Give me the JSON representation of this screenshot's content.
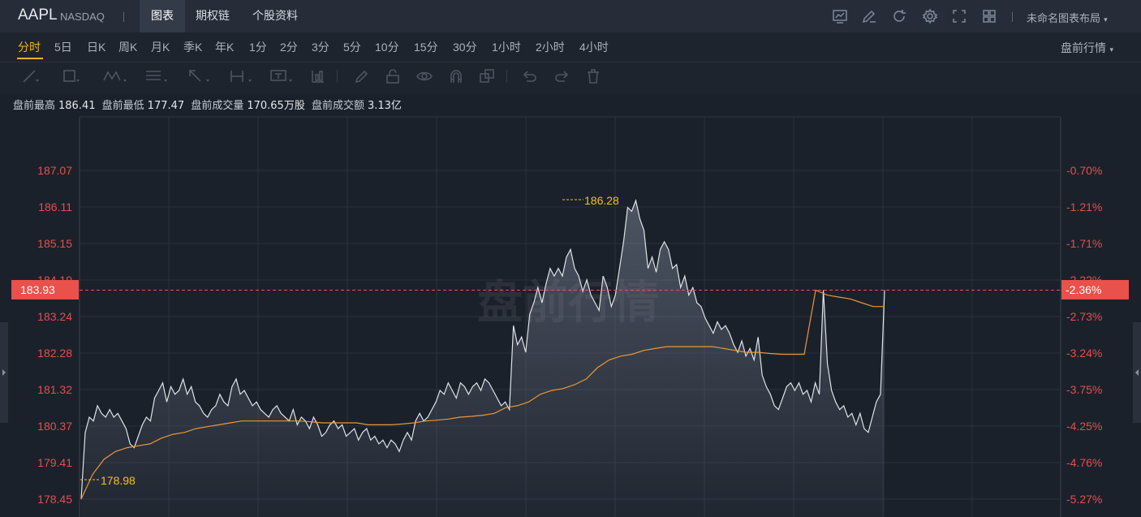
{
  "header": {
    "symbol": "AAPL",
    "exchange": "NASDAQ",
    "tabs": [
      {
        "label": "图表",
        "active": true
      },
      {
        "label": "期权链",
        "active": false
      },
      {
        "label": "个股资料",
        "active": false
      }
    ],
    "tool_icons": [
      "chart-window-icon",
      "edit-icon",
      "refresh-icon",
      "settings-icon",
      "fullscreen-icon",
      "grid-layout-icon"
    ],
    "layout_label": "未命名图表布局"
  },
  "periods": {
    "items": [
      "分时",
      "5日",
      "日K",
      "周K",
      "月K",
      "季K",
      "年K",
      "1分",
      "2分",
      "3分",
      "5分",
      "10分",
      "15分",
      "30分",
      "1小时",
      "2小时",
      "4小时"
    ],
    "active": "分时",
    "right_select": "盘前行情"
  },
  "drawing_tools": [
    "line-tool-icon",
    "rectangle-tool-icon",
    "pattern-tool-icon",
    "fib-tool-icon",
    "arrow-tool-icon",
    "measure-tool-icon",
    "text-tool-icon",
    "indicator-icon",
    "pencil-icon",
    "lock-icon",
    "eye-icon",
    "magnet-icon",
    "copy-icon",
    "undo-icon",
    "redo-icon",
    "delete-icon"
  ],
  "stats": [
    {
      "label": "盘前最高",
      "value": "186.41"
    },
    {
      "label": "盘前最低",
      "value": "177.47"
    },
    {
      "label": "盘前成交量",
      "value": "170.65万股"
    },
    {
      "label": "盘前成交额",
      "value": "3.13亿"
    }
  ],
  "chart_data": {
    "type": "line",
    "watermark": "盘前行情",
    "y_ticks_price": [
      "187.07",
      "186.11",
      "185.15",
      "184.19",
      "183.24",
      "182.28",
      "181.32",
      "180.37",
      "179.41",
      "178.45"
    ],
    "y_ticks_percent": [
      "-0.70%",
      "-1.21%",
      "-1.71%",
      "-2.22%",
      "-2.73%",
      "-3.24%",
      "-3.75%",
      "-4.25%",
      "-4.76%",
      "-5.27%"
    ],
    "ylim": [
      178.45,
      187.07
    ],
    "current_price": "183.93",
    "current_percent": "-2.36%",
    "high_label": "186.28",
    "low_label": "178.98",
    "colors": {
      "price_line": "#dfe3e9",
      "avg_line": "#e8973a",
      "axis_text": "#e2504c",
      "current_bg": "#e9514b",
      "label": "#f0c419"
    },
    "series": [
      {
        "values": [
          178.45,
          180.2,
          180.6,
          180.5,
          180.9,
          180.7,
          180.6,
          180.8,
          180.6,
          180.7,
          180.5,
          180.3,
          179.9,
          179.8,
          180.1,
          180.4,
          180.6,
          180.5,
          181.1,
          181.3,
          181.5,
          181.0,
          181.4,
          181.2,
          181.3,
          181.6,
          181.2,
          181.4,
          181.0,
          180.9,
          180.7,
          180.6,
          180.8,
          180.9,
          181.2,
          181.0,
          180.9,
          181.4,
          181.6,
          181.2,
          181.3,
          181.1,
          180.9,
          181.0,
          180.8,
          180.7,
          180.6,
          180.8,
          180.9,
          180.7,
          180.6,
          180.5,
          180.8,
          180.4,
          180.6,
          180.5,
          180.3,
          180.6,
          180.4,
          180.1,
          180.2,
          180.4,
          180.5,
          180.3,
          180.4,
          180.1,
          180.2,
          180.3,
          180.0,
          180.2,
          180.3,
          180.0,
          180.1,
          179.9,
          180.0,
          179.8,
          180.0,
          179.9,
          179.7,
          180.0,
          180.2,
          180.0,
          180.5,
          180.7,
          180.5,
          180.6,
          180.8,
          181.0,
          181.3,
          181.2,
          181.5,
          181.3,
          181.1,
          181.5,
          181.4,
          181.2,
          181.4,
          181.5,
          181.3,
          181.6,
          181.5,
          181.3,
          181.1,
          180.9,
          181.0,
          180.8,
          183.0,
          182.5,
          182.7,
          182.3,
          183.3,
          183.6,
          184.0,
          183.6,
          184.1,
          184.5,
          184.3,
          184.5,
          184.3,
          184.8,
          185.0,
          184.5,
          184.3,
          183.9,
          184.2,
          183.8,
          183.6,
          183.4,
          184.3,
          184.0,
          183.5,
          183.8,
          184.5,
          185.2,
          186.1,
          186.0,
          186.28,
          185.8,
          185.5,
          184.5,
          184.8,
          184.4,
          185.0,
          185.2,
          185.0,
          184.5,
          184.6,
          184.0,
          184.3,
          183.8,
          184.0,
          183.6,
          183.5,
          183.2,
          183.0,
          182.8,
          183.1,
          182.9,
          183.0,
          182.8,
          182.5,
          182.3,
          182.6,
          182.2,
          182.4,
          182.1,
          182.7,
          181.7,
          181.4,
          181.2,
          180.9,
          180.8,
          181.1,
          181.4,
          181.5,
          181.3,
          181.5,
          181.2,
          181.3,
          181.0,
          181.5,
          181.2,
          183.93,
          182.0,
          181.3,
          181.0,
          180.8,
          180.9,
          180.6,
          180.7,
          180.4,
          180.7,
          180.3,
          180.2,
          180.6,
          181.0,
          181.2,
          183.93
        ]
      },
      {
        "values": [
          178.45,
          179.1,
          179.5,
          179.7,
          179.8,
          179.85,
          179.9,
          180.05,
          180.15,
          180.2,
          180.3,
          180.35,
          180.4,
          180.45,
          180.5,
          180.5,
          180.5,
          180.5,
          180.5,
          180.5,
          180.48,
          180.45,
          180.45,
          180.45,
          180.45,
          180.4,
          180.4,
          180.4,
          180.42,
          180.45,
          180.5,
          180.52,
          180.55,
          180.6,
          180.62,
          180.65,
          180.7,
          180.85,
          180.9,
          181.0,
          181.2,
          181.3,
          181.35,
          181.45,
          181.6,
          181.9,
          182.1,
          182.2,
          182.25,
          182.35,
          182.4,
          182.45,
          182.45,
          182.45,
          182.45,
          182.45,
          182.4,
          182.35,
          182.3,
          182.3,
          182.27,
          182.25,
          182.25,
          182.25,
          183.93,
          183.8,
          183.75,
          183.7,
          183.6,
          183.5,
          183.5
        ]
      }
    ]
  }
}
